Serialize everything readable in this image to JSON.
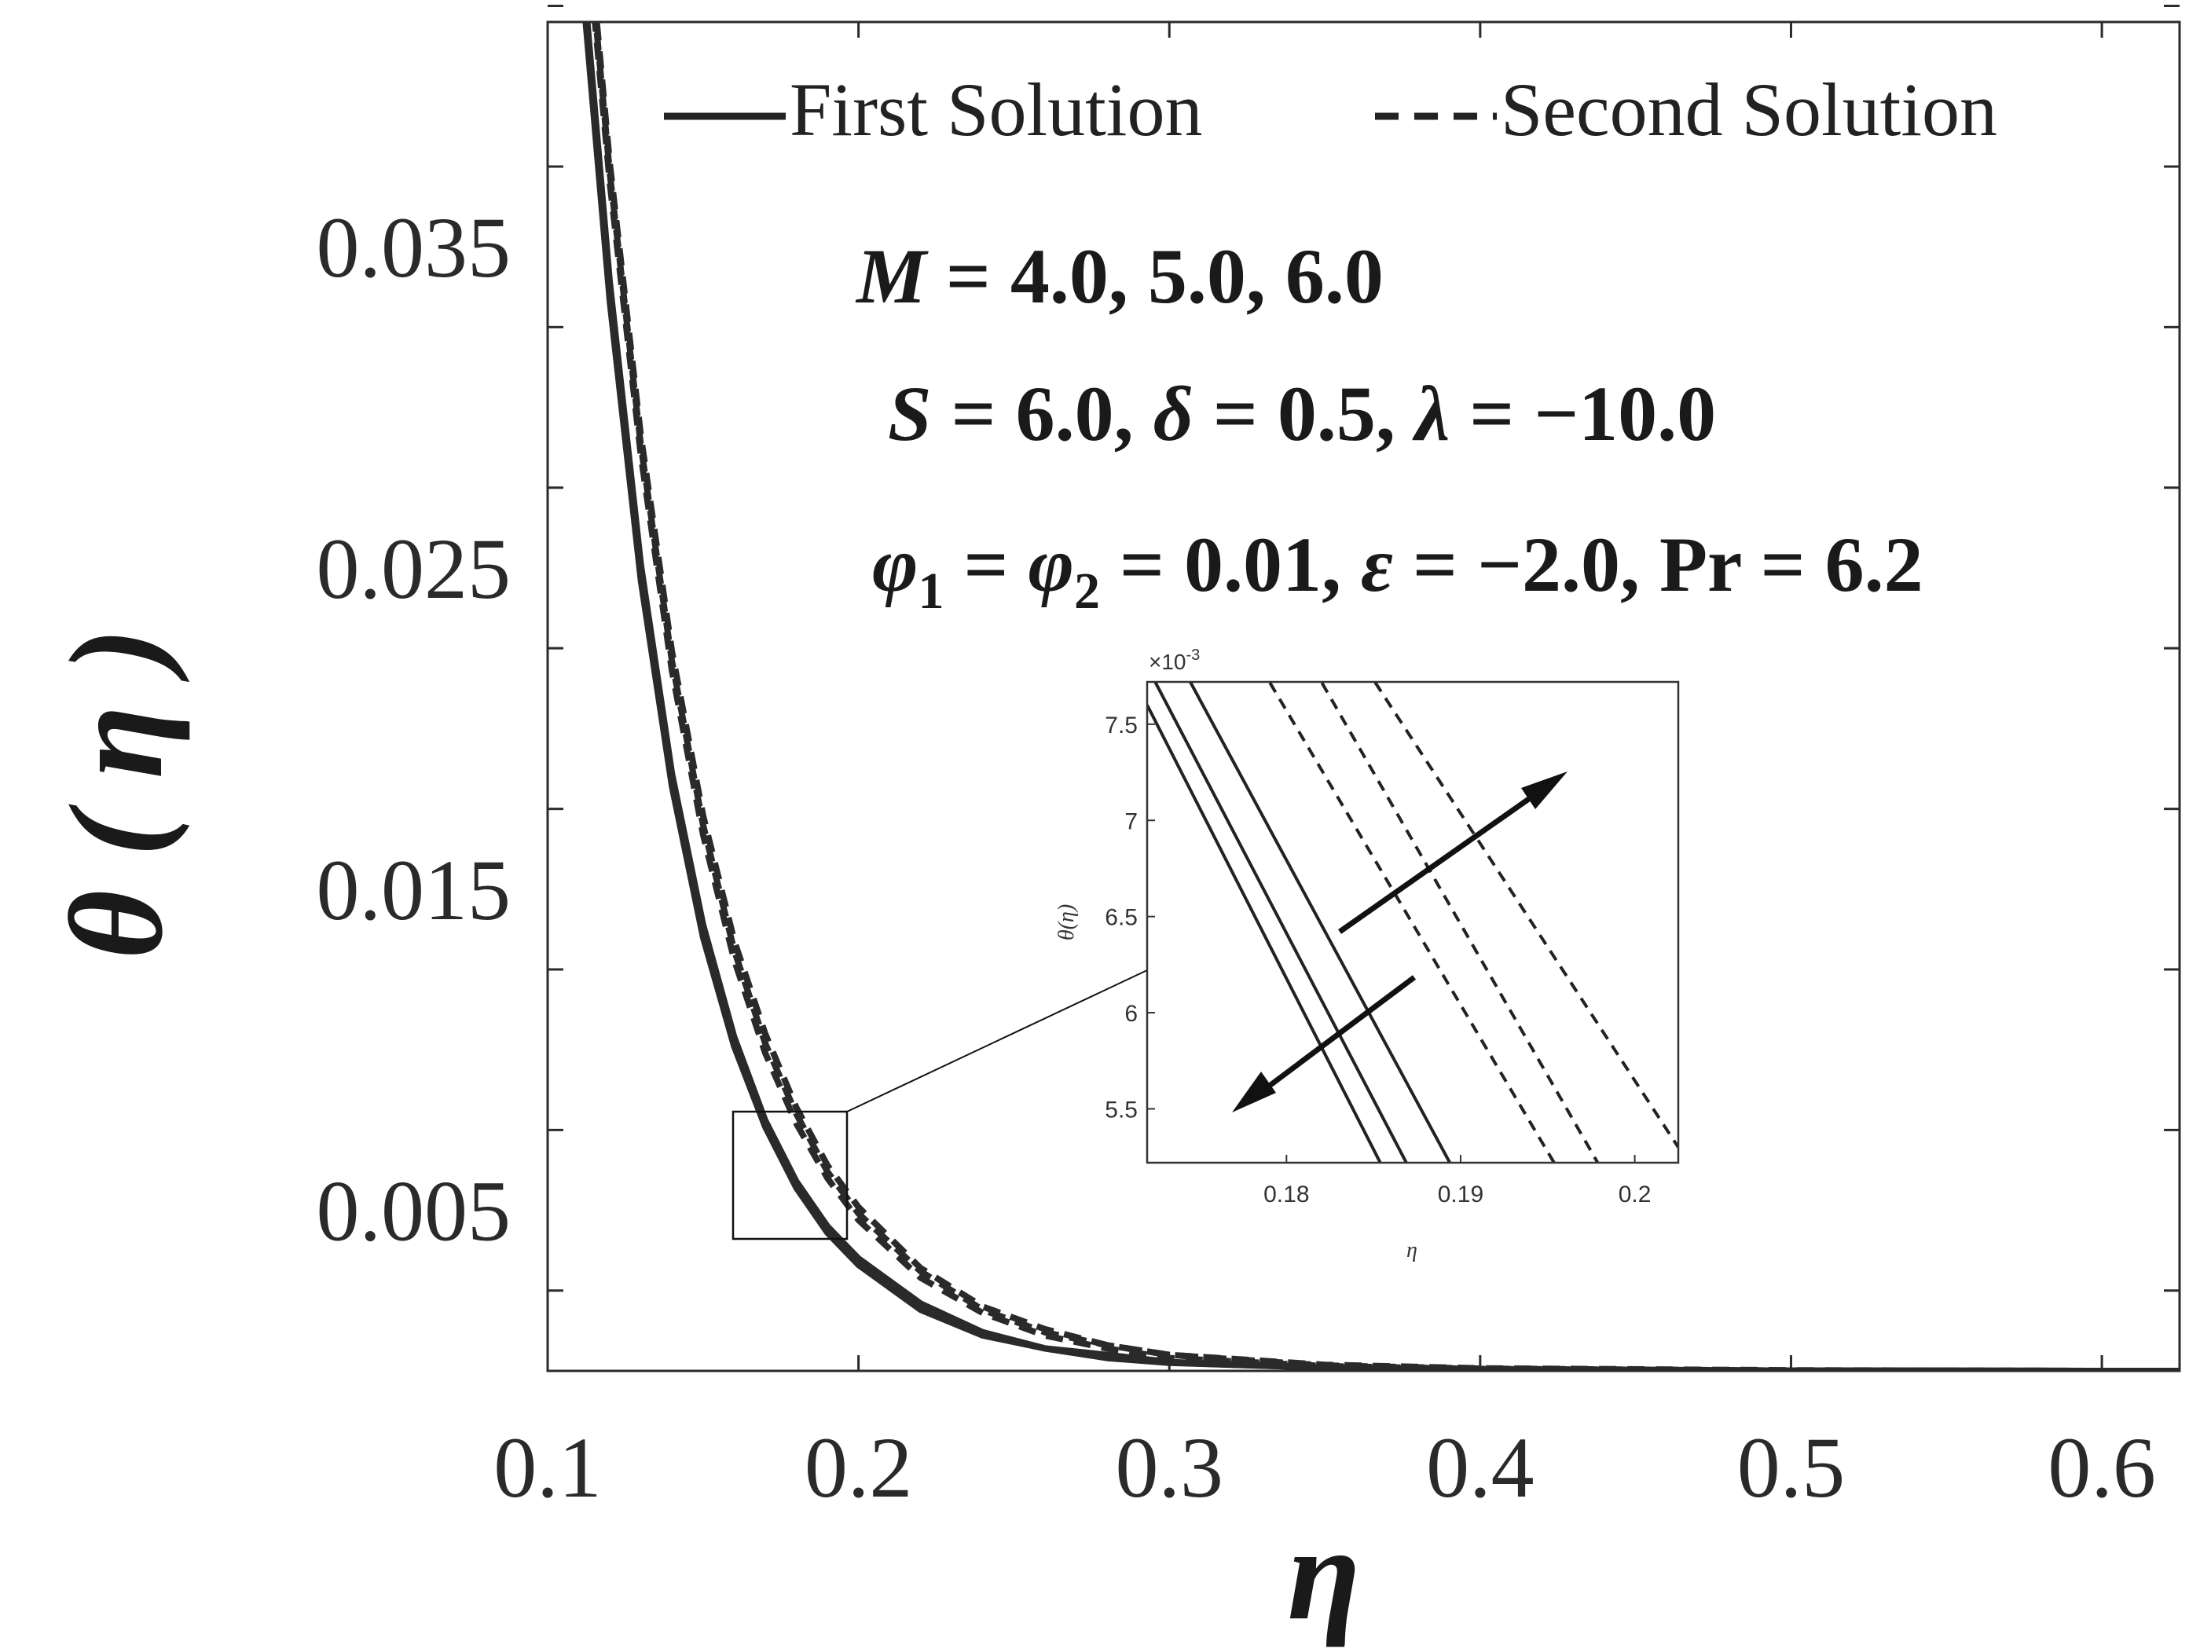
{
  "chart_data": {
    "type": "line",
    "xlabel": "η",
    "ylabel": "θ(η)",
    "xlim": [
      0.1,
      0.625
    ],
    "ylim": [
      0.0,
      0.042
    ],
    "xticks": [
      0.1,
      0.2,
      0.3,
      0.4,
      0.5,
      0.6
    ],
    "xtick_labels": [
      "0.1",
      "0.2",
      "0.3",
      "0.4",
      "0.5",
      "0.6"
    ],
    "yticks_labeled": [
      0.005,
      0.015,
      0.025,
      0.035
    ],
    "ytick_labels": [
      "0.005",
      "0.015",
      "0.025",
      "0.035"
    ],
    "legend": {
      "position": "top",
      "entries": [
        {
          "label": "First Solution",
          "style": "solid"
        },
        {
          "label": "Second Solution",
          "style": "dashed"
        }
      ]
    },
    "annotations": [
      "M = 4.0, 5.0, 6.0",
      "S = 6.0, δ = 0.5, λ = −10.0",
      "φ1 = φ2 = 0.01, ε = −2.0, Pr = 6.2"
    ],
    "x": [
      0.11,
      0.12,
      0.13,
      0.14,
      0.15,
      0.16,
      0.17,
      0.18,
      0.19,
      0.2,
      0.22,
      0.24,
      0.26,
      0.28,
      0.3,
      0.35,
      0.4,
      0.5,
      0.6,
      0.625
    ],
    "series": [
      {
        "label": "First Solution, M = 4.0",
        "style": "solid",
        "values": [
          0.0445,
          0.0333,
          0.0246,
          0.0182,
          0.0135,
          0.0101,
          0.0076,
          0.0057,
          0.0043,
          0.0033,
          0.0019,
          0.0011,
          0.0007,
          0.0004,
          0.00025,
          0.0001,
          4e-05,
          1e-05,
          0.0,
          0.0
        ]
      },
      {
        "label": "First Solution, M = 5.0",
        "style": "solid",
        "values": [
          0.0448,
          0.0336,
          0.0249,
          0.0184,
          0.0137,
          0.0102,
          0.0077,
          0.0058,
          0.0044,
          0.0034,
          0.002,
          0.0012,
          0.0007,
          0.0004,
          0.00026,
          0.0001,
          4e-05,
          1e-05,
          0.0,
          0.0
        ]
      },
      {
        "label": "First Solution, M = 6.0",
        "style": "solid",
        "values": [
          0.0451,
          0.0339,
          0.0251,
          0.0186,
          0.0139,
          0.0104,
          0.0078,
          0.0059,
          0.0045,
          0.0035,
          0.0021,
          0.0012,
          0.0007,
          0.0005,
          0.00028,
          0.0001,
          4e-05,
          1e-05,
          0.0,
          0.0
        ]
      },
      {
        "label": "Second Solution, M = 4.0",
        "style": "dashed",
        "values": [
          0.0475,
          0.037,
          0.0285,
          0.0218,
          0.0167,
          0.0128,
          0.0099,
          0.0077,
          0.006,
          0.0047,
          0.0029,
          0.0018,
          0.0011,
          0.0007,
          0.0004,
          0.00015,
          6e-05,
          1e-05,
          0.0,
          0.0
        ]
      },
      {
        "label": "Second Solution, M = 5.0",
        "style": "dashed",
        "values": [
          0.0478,
          0.0373,
          0.0288,
          0.0221,
          0.017,
          0.0131,
          0.0102,
          0.008,
          0.0062,
          0.0049,
          0.0031,
          0.0019,
          0.0012,
          0.0008,
          0.0005,
          0.00017,
          7e-05,
          1e-05,
          0.0,
          0.0
        ]
      },
      {
        "label": "Second Solution, M = 6.0",
        "style": "dashed",
        "values": [
          0.0481,
          0.0376,
          0.0291,
          0.0224,
          0.0173,
          0.0134,
          0.0105,
          0.0082,
          0.0064,
          0.0051,
          0.0032,
          0.002,
          0.0013,
          0.0008,
          0.0005,
          0.00019,
          8e-05,
          2e-05,
          0.0,
          0.0
        ]
      }
    ],
    "inset": {
      "xlim": [
        0.172,
        0.2025
      ],
      "ylim": [
        0.00522,
        0.00772
      ],
      "xticks": [
        0.18,
        0.19,
        0.2
      ],
      "xtick_labels": [
        "0.18",
        "0.19",
        "0.2"
      ],
      "yticks": [
        0.0055,
        0.006,
        0.0065,
        0.007,
        0.0075
      ],
      "ytick_labels": [
        "5.5",
        "6",
        "6.5",
        "7",
        "7.5"
      ],
      "y_exponent_label": "×10",
      "y_exponent": "-3",
      "xlabel": "η",
      "ylabel": "θ(η)",
      "lines": [
        {
          "style": "solid",
          "x": [
            0.172,
            0.1855
          ],
          "y": [
            0.0076,
            0.0052
          ]
        },
        {
          "style": "solid",
          "x": [
            0.172,
            0.187
          ],
          "y": [
            0.0078,
            0.0052
          ]
        },
        {
          "style": "solid",
          "x": [
            0.174,
            0.1895
          ],
          "y": [
            0.0078,
            0.0052
          ]
        },
        {
          "style": "dashed",
          "x": [
            0.1785,
            0.1955
          ],
          "y": [
            0.0078,
            0.0052
          ]
        },
        {
          "style": "dashed",
          "x": [
            0.1815,
            0.198
          ],
          "y": [
            0.0078,
            0.0052
          ]
        },
        {
          "style": "dashed",
          "x": [
            0.1845,
            0.2025
          ],
          "y": [
            0.0078,
            0.0053
          ]
        }
      ]
    }
  }
}
